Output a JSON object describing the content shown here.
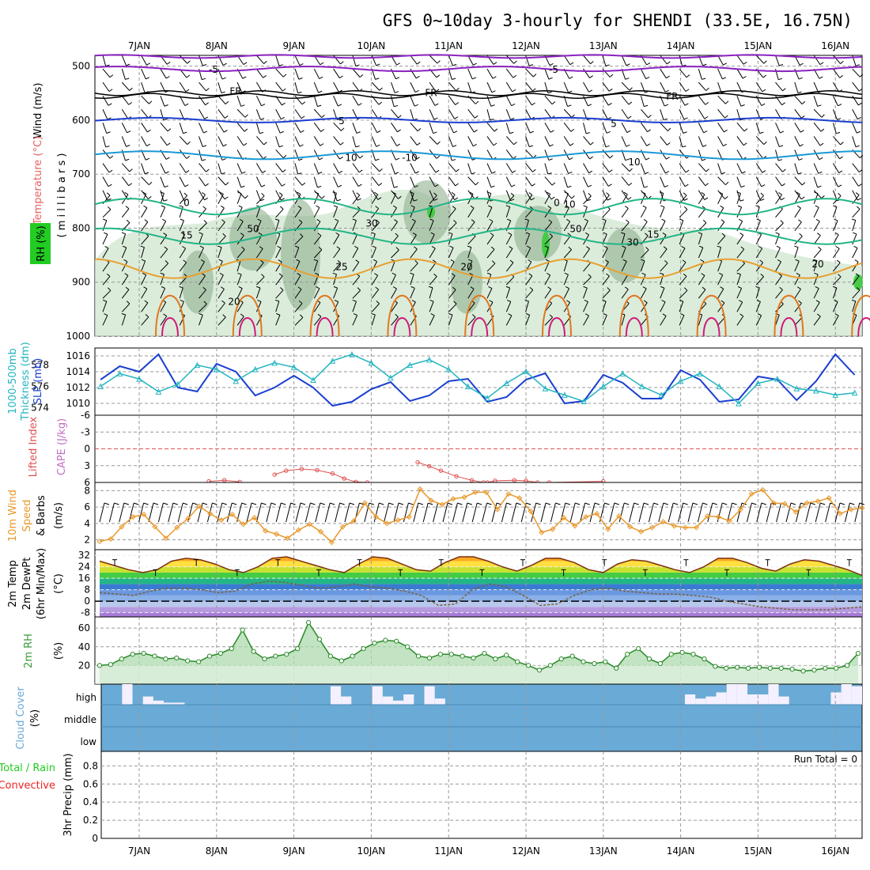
{
  "title": "GFS 0~10day 3-hourly for SHENDI (33.5E, 16.75N)",
  "day_labels": [
    "7JAN",
    "8JAN",
    "9JAN",
    "10JAN",
    "11JAN",
    "12JAN",
    "13JAN",
    "14JAN",
    "15JAN",
    "16JAN"
  ],
  "colors": {
    "rh_fill": "#cfe6cf",
    "rh_dark": "#8fb08f",
    "slp": "#1a3fd0",
    "thickness": "#22b5c0",
    "cape_li": "#e05050",
    "wind": "#e8982a",
    "temp": "#7a3010",
    "dewpt": "#7a6040",
    "rh2m": "#3a9a3a",
    "cloud": "#6aaad6",
    "precip_total": "#22cc22",
    "precip_conv": "#ee2222"
  },
  "panels": {
    "upper": {
      "y_label": "( m i l l i b a r s )",
      "side_labels": [
        "Wind (m/s)",
        "Temperature (°C)",
        "RH (%)"
      ],
      "levels": [
        "500",
        "600",
        "700",
        "800",
        "900",
        "1000"
      ],
      "contour_labels": [
        "-5",
        "-5",
        "FR",
        "FR",
        "FR",
        "5",
        "5",
        "10",
        "10",
        "0",
        "0",
        "15",
        "15",
        "25",
        "20",
        "20",
        "20",
        "-10",
        "10",
        "30",
        "50",
        "50",
        "30"
      ]
    },
    "slp_thickness": {
      "side_labels": [
        "1000-500mb",
        "Thickness (dm)",
        "SLP (mb)"
      ],
      "left_ticks": [
        "578",
        "576",
        "574"
      ],
      "right_ticks": [
        "1016",
        "1014",
        "1012",
        "1010"
      ]
    },
    "cape": {
      "side_labels": [
        "Lifted Index",
        "CAPE (J/kg)"
      ],
      "ticks": [
        "-6",
        "-3",
        "0",
        "3",
        "6"
      ]
    },
    "wind10": {
      "side_labels": [
        "10m Wind",
        "Speed",
        "& Barbs"
      ],
      "unit": "(m/s)",
      "ticks": [
        "8",
        "6",
        "4",
        "2"
      ]
    },
    "temp2m": {
      "side_labels": [
        "2m Temp",
        "2m DewPt",
        "(6hr Min/Max)"
      ],
      "unit": "(°C)",
      "ticks": [
        "32",
        "24",
        "16",
        "8",
        "0",
        "-8"
      ]
    },
    "rh2m": {
      "side_labels": [
        "2m RH"
      ],
      "unit": "(%)",
      "ticks": [
        "60",
        "40",
        "20"
      ]
    },
    "cloud": {
      "side_labels": [
        "Cloud Cover",
        "(%)"
      ],
      "levels": [
        "high",
        "middle",
        "low"
      ]
    },
    "precip": {
      "side_labels": [
        "Total / Rain",
        "Convective",
        "3hr Precip (mm)"
      ],
      "ticks": [
        "0.8",
        "0.6",
        "0.4",
        "0.2",
        "0"
      ],
      "run_total": "Run Total = 0"
    }
  },
  "chart_data": [
    {
      "type": "line",
      "title": "SLP (mb)",
      "x_unit": "days from 6 JAN 12Z",
      "series": [
        {
          "name": "SLP (mb)",
          "x": [
            0,
            0.25,
            0.5,
            0.75,
            1,
            1.25,
            1.5,
            1.75,
            2,
            2.25,
            2.5,
            2.75,
            3,
            3.25,
            3.5,
            3.75,
            4,
            4.25,
            4.5,
            4.75,
            5,
            5.25,
            5.5,
            5.75,
            6,
            6.25,
            6.5,
            6.75,
            7,
            7.25,
            7.5,
            7.75,
            8,
            8.25,
            8.5,
            8.75,
            9,
            9.25,
            9.5,
            9.75
          ],
          "values": [
            1013,
            1014.7,
            1014,
            1016.2,
            1012,
            1011.5,
            1015,
            1014,
            1011,
            1012,
            1013.5,
            1012,
            1009.7,
            1010.2,
            1011.8,
            1012.7,
            1010.3,
            1011,
            1012.8,
            1013.1,
            1010.2,
            1010.8,
            1013,
            1013.8,
            1010,
            1010.3,
            1013.6,
            1012.6,
            1010.6,
            1010.6,
            1014.2,
            1013,
            1010.2,
            1010.5,
            1013.4,
            1013,
            1010.4,
            1012.8,
            1016.2,
            1013.6
          ]
        },
        {
          "name": "1000-500mb Thickness (dm)",
          "x": [
            0,
            0.25,
            0.5,
            0.75,
            1,
            1.25,
            1.5,
            1.75,
            2,
            2.25,
            2.5,
            2.75,
            3,
            3.25,
            3.5,
            3.75,
            4,
            4.25,
            4.5,
            4.75,
            5,
            5.25,
            5.5,
            5.75,
            6,
            6.25,
            6.5,
            6.75,
            7,
            7.25,
            7.5,
            7.75,
            8,
            8.25,
            8.5,
            8.75,
            9,
            9.25,
            9.5,
            9.75
          ],
          "values": [
            576,
            577.2,
            576.7,
            575.5,
            576.2,
            578,
            577.6,
            576.5,
            577.6,
            578.2,
            577.8,
            576.6,
            578.4,
            579,
            578.2,
            576.8,
            578,
            578.5,
            577.6,
            576,
            574.9,
            576.3,
            577.4,
            575.8,
            575.2,
            574.6,
            576,
            577.2,
            576,
            575.2,
            576.5,
            577.2,
            576,
            574.4,
            576.3,
            576.7,
            575.8,
            575.6,
            575.2,
            575.4
          ]
        }
      ]
    },
    {
      "type": "line",
      "title": "Lifted Index",
      "series": [
        {
          "name": "Lifted Index",
          "x": [
            1.4,
            1.6,
            1.8,
            2.25,
            2.4,
            2.6,
            2.8,
            3.0,
            3.15,
            3.3,
            3.45,
            4.1,
            4.25,
            4.4,
            4.6,
            4.8,
            4.95,
            5.0,
            5.1,
            5.35,
            5.5,
            5.65,
            5.8,
            6.5
          ],
          "values": [
            5.8,
            5.6,
            5.9,
            4.6,
            3.9,
            3.6,
            3.8,
            4.4,
            5.3,
            5.9,
            6,
            2.4,
            3.1,
            3.9,
            4.9,
            5.6,
            6,
            6,
            5.7,
            5.6,
            5.7,
            6,
            6,
            5.8
          ]
        }
      ]
    },
    {
      "type": "line",
      "title": "10m Wind Speed (m/s)",
      "series": [
        {
          "name": "10m Wind Speed",
          "values": [
            1.8,
            2.1,
            3.6,
            4.8,
            5.1,
            3.6,
            2.2,
            3.5,
            4.6,
            6.1,
            5.2,
            4.4,
            5.1,
            3.9,
            4.7,
            3.1,
            2.7,
            2.2,
            3.2,
            3.9,
            3.0,
            1.7,
            3.6,
            4.3,
            6.5,
            4.8,
            4.0,
            4.4,
            4.8,
            8.2,
            6.8,
            6.3,
            7.0,
            7.2,
            7.8,
            7.8,
            5.7,
            7.6,
            7.1,
            5.5,
            2.9,
            3.3,
            4.7,
            3.7,
            4.8,
            5.2,
            3.3,
            4.9,
            3.6,
            3.0,
            3.5,
            4.2,
            3.7,
            3.5,
            3.5,
            4.9,
            4.8,
            4.3,
            5.7,
            7.6,
            8.1,
            6.5,
            6.4,
            5.4,
            6.5,
            6.7,
            7.1,
            5.2,
            5.7,
            5.9
          ]
        }
      ]
    },
    {
      "type": "line",
      "title": "2m Temp / DewPt (°C)",
      "series": [
        {
          "name": "2m Temp",
          "values": [
            28,
            25,
            22,
            20,
            22,
            28,
            30,
            29,
            26,
            22,
            20,
            24,
            30,
            31,
            28,
            25,
            22,
            20,
            26,
            31,
            30,
            26,
            22,
            21,
            27,
            31,
            31,
            28,
            24,
            21,
            25,
            30,
            30,
            27,
            22,
            20,
            26,
            29,
            28,
            25,
            22,
            20,
            24,
            30,
            30,
            27,
            23,
            21,
            26,
            29,
            28,
            25,
            22,
            18
          ]
        },
        {
          "name": "2m DewPt",
          "values": [
            6,
            5,
            4,
            7,
            9,
            9,
            8,
            6,
            7,
            12,
            14,
            13,
            11,
            9,
            10,
            12,
            10,
            9,
            7,
            4,
            -3,
            -2,
            8,
            12,
            10,
            4,
            -3,
            -2,
            4,
            8,
            9,
            7,
            6,
            5,
            5,
            4,
            3,
            0,
            -2,
            -4,
            -5,
            -6,
            -6,
            -6,
            -5,
            -4
          ]
        }
      ]
    },
    {
      "type": "area",
      "title": "2m RH (%)",
      "series": [
        {
          "name": "2m RH",
          "values": [
            20,
            21,
            27,
            32,
            33,
            30,
            27,
            28,
            25,
            24,
            30,
            33,
            38,
            58,
            35,
            27,
            30,
            32,
            38,
            66,
            48,
            30,
            25,
            30,
            38,
            44,
            47,
            46,
            40,
            30,
            28,
            32,
            32,
            30,
            28,
            33,
            27,
            31,
            24,
            20,
            15,
            20,
            27,
            30,
            24,
            22,
            24,
            17,
            32,
            38,
            27,
            22,
            32,
            34,
            32,
            27,
            19,
            17,
            18,
            17,
            18,
            17,
            17,
            16,
            14,
            15,
            17,
            17,
            20,
            33
          ]
        }
      ]
    },
    {
      "type": "bar",
      "title": "Cloud Cover (%) high",
      "series": [
        {
          "name": "high",
          "values": [
            0,
            0,
            100,
            0,
            40,
            20,
            10,
            10,
            0,
            0,
            0,
            0,
            0,
            0,
            0,
            0,
            0,
            0,
            0,
            0,
            0,
            0,
            90,
            40,
            0,
            0,
            90,
            40,
            20,
            50,
            0,
            90,
            30,
            0,
            0,
            0,
            0,
            0,
            0,
            0,
            0,
            0,
            0,
            0,
            0,
            0,
            0,
            0,
            0,
            0,
            0,
            0,
            0,
            0,
            0,
            0,
            50,
            30,
            40,
            60,
            100,
            100,
            50,
            50,
            100,
            40,
            0,
            0,
            0,
            0,
            60,
            100,
            90
          ]
        }
      ]
    },
    {
      "type": "bar",
      "title": "3hr Precip (mm)",
      "series": [
        {
          "name": "Total / Rain",
          "values": []
        },
        {
          "name": "Convective",
          "values": []
        }
      ]
    }
  ]
}
